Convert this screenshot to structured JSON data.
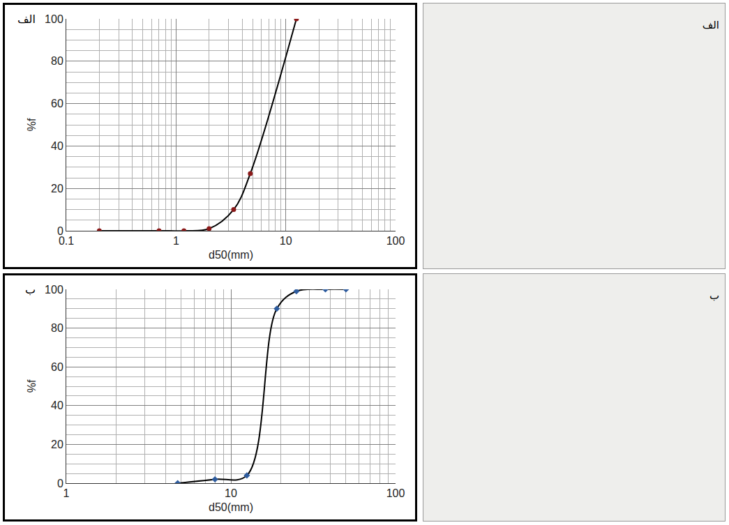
{
  "chart_data": [
    {
      "type": "line",
      "annotations": [
        "الف"
      ],
      "x_label": "d50(mm)",
      "y_label": "%f",
      "x": [
        0.2,
        0.7,
        1.18,
        2,
        3.35,
        4.75,
        12.5
      ],
      "values": [
        0,
        0,
        0,
        1,
        10,
        27,
        100
      ],
      "color": "#000000",
      "marker": "circle",
      "marker_color": "#8b1a1a",
      "line_style": "solid",
      "log": "x",
      "grid": true,
      "xlim": [
        0.1,
        100
      ],
      "xticks": [
        0.1,
        1,
        10,
        100
      ],
      "ylim": [
        0,
        100
      ],
      "yticks": [
        0,
        20,
        40,
        60,
        80,
        100
      ]
    },
    {
      "type": "line",
      "annotations": [
        "ب"
      ],
      "x_label": "d50(mm)",
      "y_label": "%f",
      "x": [
        4.75,
        8,
        12.5,
        19,
        25,
        37.5,
        50
      ],
      "values": [
        0,
        2,
        4,
        90,
        99,
        100,
        100
      ],
      "color": "#000000",
      "marker": "diamond",
      "marker_color": "#2e5c9e",
      "line_style": "solid",
      "log": "x",
      "grid": true,
      "xlim": [
        1,
        100
      ],
      "xticks": [
        1,
        10,
        100
      ],
      "ylim": [
        0,
        100
      ],
      "yticks": [
        0,
        20,
        40,
        60,
        80,
        100
      ]
    }
  ],
  "photos": [
    {
      "label": "الف"
    },
    {
      "label": "ب"
    }
  ]
}
